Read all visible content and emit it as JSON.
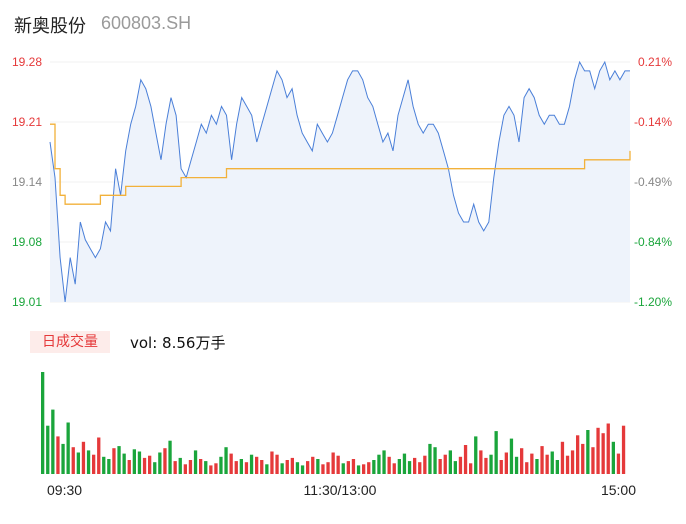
{
  "header": {
    "stock_name": "新奥股份",
    "stock_code": "600803.SH"
  },
  "volume_panel": {
    "badge": "日成交量",
    "vol_label": "vol: 8.56万手"
  },
  "colors": {
    "price_line": "#4a7fd8",
    "avg_line": "#f2b13a",
    "up": "#e5393a",
    "down": "#1aa53b",
    "neutral": "#888888",
    "area": "#eef3fb"
  },
  "chart_data": [
    {
      "type": "line",
      "title": "",
      "y_price_ticks": [
        "19.28",
        "19.21",
        "19.14",
        "19.08",
        "19.01"
      ],
      "y_pct_ticks": [
        "0.21%",
        "-0.14%",
        "-0.49%",
        "-0.84%",
        "-1.20%"
      ],
      "ylim": [
        19.01,
        19.28
      ],
      "x_ticks": [
        "09:30",
        "11:30/13:00",
        "15:00"
      ],
      "series": [
        {
          "name": "",
          "values": [
            19.19,
            19.15,
            19.06,
            19.01,
            19.06,
            19.03,
            19.1,
            19.08,
            19.07,
            19.06,
            19.07,
            19.1,
            19.09,
            19.16,
            19.13,
            19.18,
            19.21,
            19.23,
            19.26,
            19.25,
            19.23,
            19.2,
            19.17,
            19.21,
            19.24,
            19.22,
            19.16,
            19.15,
            19.17,
            19.19,
            19.21,
            19.2,
            19.22,
            19.21,
            19.23,
            19.22,
            19.17,
            19.21,
            19.24,
            19.23,
            19.22,
            19.19,
            19.21,
            19.23,
            19.25,
            19.27,
            19.26,
            19.24,
            19.25,
            19.22,
            19.2,
            19.19,
            19.18,
            19.21,
            19.2,
            19.19,
            19.2,
            19.22,
            19.24,
            19.26,
            19.27,
            19.27,
            19.26,
            19.24,
            19.23,
            19.21,
            19.19,
            19.2,
            19.18,
            19.22,
            19.24,
            19.26,
            19.23,
            19.21,
            19.2,
            19.21,
            19.21,
            19.2,
            19.18,
            19.16,
            19.13,
            19.11,
            19.1,
            19.1,
            19.12,
            19.1,
            19.09,
            19.1,
            19.15,
            19.19,
            19.22,
            19.23,
            19.22,
            19.19,
            19.24,
            19.25,
            19.24,
            19.22,
            19.21,
            19.22,
            19.22,
            19.21,
            19.21,
            19.23,
            19.26,
            19.28,
            19.27,
            19.27,
            19.25,
            19.27,
            19.28,
            19.26,
            19.27,
            19.26,
            19.27,
            19.27
          ]
        },
        {
          "name": "",
          "values": [
            19.21,
            19.16,
            19.13,
            19.12,
            19.12,
            19.12,
            19.12,
            19.12,
            19.12,
            19.12,
            19.13,
            19.13,
            19.13,
            19.13,
            19.13,
            19.14,
            19.14,
            19.14,
            19.14,
            19.14,
            19.14,
            19.14,
            19.14,
            19.14,
            19.14,
            19.14,
            19.15,
            19.15,
            19.15,
            19.15,
            19.15,
            19.15,
            19.15,
            19.15,
            19.15,
            19.16,
            19.16,
            19.16,
            19.16,
            19.16,
            19.16,
            19.16,
            19.16,
            19.16,
            19.16,
            19.16,
            19.16,
            19.16,
            19.16,
            19.16,
            19.16,
            19.16,
            19.16,
            19.16,
            19.16,
            19.16,
            19.16,
            19.16,
            19.16,
            19.16,
            19.16,
            19.16,
            19.16,
            19.16,
            19.16,
            19.16,
            19.16,
            19.16,
            19.16,
            19.16,
            19.16,
            19.16,
            19.16,
            19.16,
            19.16,
            19.16,
            19.16,
            19.16,
            19.16,
            19.16,
            19.16,
            19.16,
            19.16,
            19.16,
            19.16,
            19.16,
            19.16,
            19.16,
            19.16,
            19.16,
            19.16,
            19.16,
            19.16,
            19.16,
            19.16,
            19.16,
            19.16,
            19.16,
            19.16,
            19.16,
            19.16,
            19.16,
            19.16,
            19.16,
            19.16,
            19.16,
            19.17,
            19.17,
            19.17,
            19.17,
            19.17,
            19.17,
            19.17,
            19.17,
            19.17,
            19.18
          ]
        }
      ]
    },
    {
      "type": "bar",
      "title": "",
      "volumes": [
        95,
        45,
        60,
        35,
        28,
        48,
        25,
        20,
        30,
        22,
        18,
        34,
        16,
        14,
        24,
        26,
        19,
        13,
        23,
        21,
        15,
        17,
        11,
        20,
        24,
        31,
        12,
        15,
        9,
        13,
        22,
        14,
        12,
        8,
        10,
        16,
        25,
        19,
        12,
        14,
        11,
        18,
        16,
        13,
        9,
        21,
        18,
        10,
        13,
        15,
        11,
        8,
        12,
        16,
        14,
        9,
        11,
        20,
        17,
        10,
        12,
        14,
        8,
        9,
        11,
        13,
        18,
        22,
        16,
        10,
        14,
        19,
        12,
        15,
        11,
        17,
        28,
        25,
        14,
        18,
        22,
        12,
        16,
        27,
        10,
        35,
        22,
        15,
        18,
        40,
        13,
        20,
        33,
        16,
        24,
        11,
        19,
        14,
        26,
        18,
        21,
        13,
        30,
        17,
        22,
        36,
        28,
        41,
        25,
        43,
        38,
        47,
        30,
        19,
        45
      ],
      "directions": [
        "down",
        "down",
        "down",
        "up",
        "down",
        "down",
        "up",
        "down",
        "up",
        "down",
        "up",
        "up",
        "down",
        "down",
        "up",
        "down",
        "down",
        "up",
        "down",
        "down",
        "up",
        "up",
        "down",
        "down",
        "up",
        "down",
        "up",
        "down",
        "up",
        "up",
        "down",
        "up",
        "down",
        "up",
        "up",
        "down",
        "down",
        "up",
        "up",
        "down",
        "up",
        "down",
        "up",
        "up",
        "down",
        "up",
        "up",
        "down",
        "up",
        "up",
        "down",
        "down",
        "up",
        "up",
        "down",
        "up",
        "up",
        "up",
        "up",
        "down",
        "up",
        "up",
        "down",
        "up",
        "up",
        "down",
        "down",
        "down",
        "up",
        "up",
        "down",
        "down",
        "down",
        "up",
        "up",
        "up",
        "down",
        "down",
        "up",
        "up",
        "down",
        "down",
        "up",
        "up",
        "up",
        "down",
        "up",
        "up",
        "down",
        "down",
        "up",
        "up",
        "down",
        "down",
        "up",
        "up",
        "up",
        "down",
        "up",
        "up",
        "down",
        "down",
        "up",
        "up",
        "up",
        "up",
        "up",
        "down",
        "up",
        "up",
        "up",
        "up",
        "down",
        "up",
        "up"
      ]
    }
  ]
}
